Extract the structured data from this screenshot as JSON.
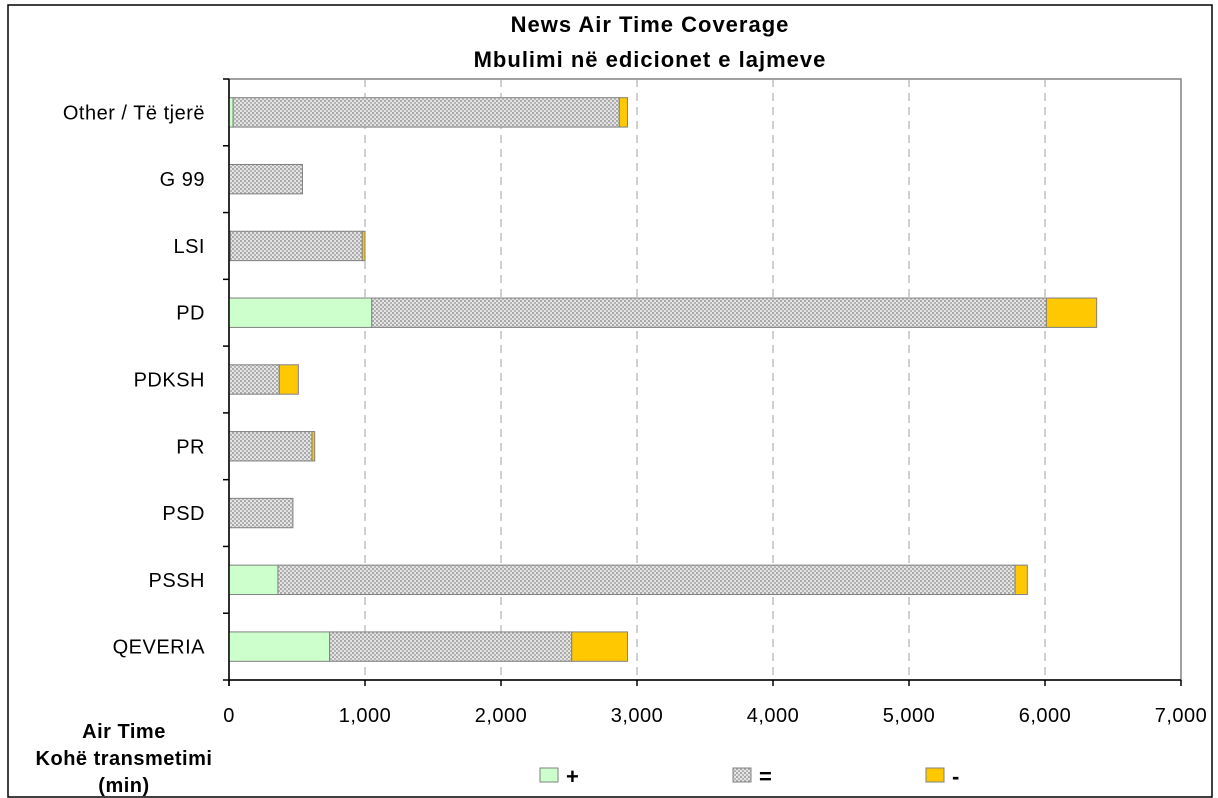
{
  "chart_data": {
    "type": "bar",
    "orientation": "horizontal",
    "stacked": true,
    "title": "News Air Time Coverage",
    "subtitle": "Mbulimi në edicionet e lajmeve",
    "xlabel_lines": [
      "Air Time",
      "Kohë transmetimi",
      "(min)"
    ],
    "ylabel": "",
    "categories": [
      "Other / Të tjerë",
      "G 99",
      "LSI",
      "PD",
      "PDKSH",
      "PR",
      "PSD",
      "PSSH",
      "QEVERIA"
    ],
    "series": [
      {
        "name": "+",
        "color": "#ccffcc",
        "values": [
          30,
          0,
          10,
          1050,
          0,
          0,
          0,
          360,
          740
        ]
      },
      {
        "name": "=",
        "color": "#c8c8c8",
        "pattern": "dotted",
        "values": [
          2840,
          540,
          970,
          4960,
          370,
          610,
          470,
          5420,
          1780
        ]
      },
      {
        "name": "-",
        "color": "#ffc800",
        "values": [
          60,
          0,
          20,
          370,
          140,
          20,
          0,
          90,
          410
        ]
      }
    ],
    "xlim": [
      0,
      7000
    ],
    "xticks": [
      0,
      1000,
      2000,
      3000,
      4000,
      5000,
      6000,
      7000
    ],
    "xtick_labels": [
      "0",
      "1,000",
      "2,000",
      "3,000",
      "4,000",
      "5,000",
      "6,000",
      "7,000"
    ],
    "grid": {
      "vertical": true,
      "style": "dashed"
    },
    "legend_position": "bottom"
  }
}
